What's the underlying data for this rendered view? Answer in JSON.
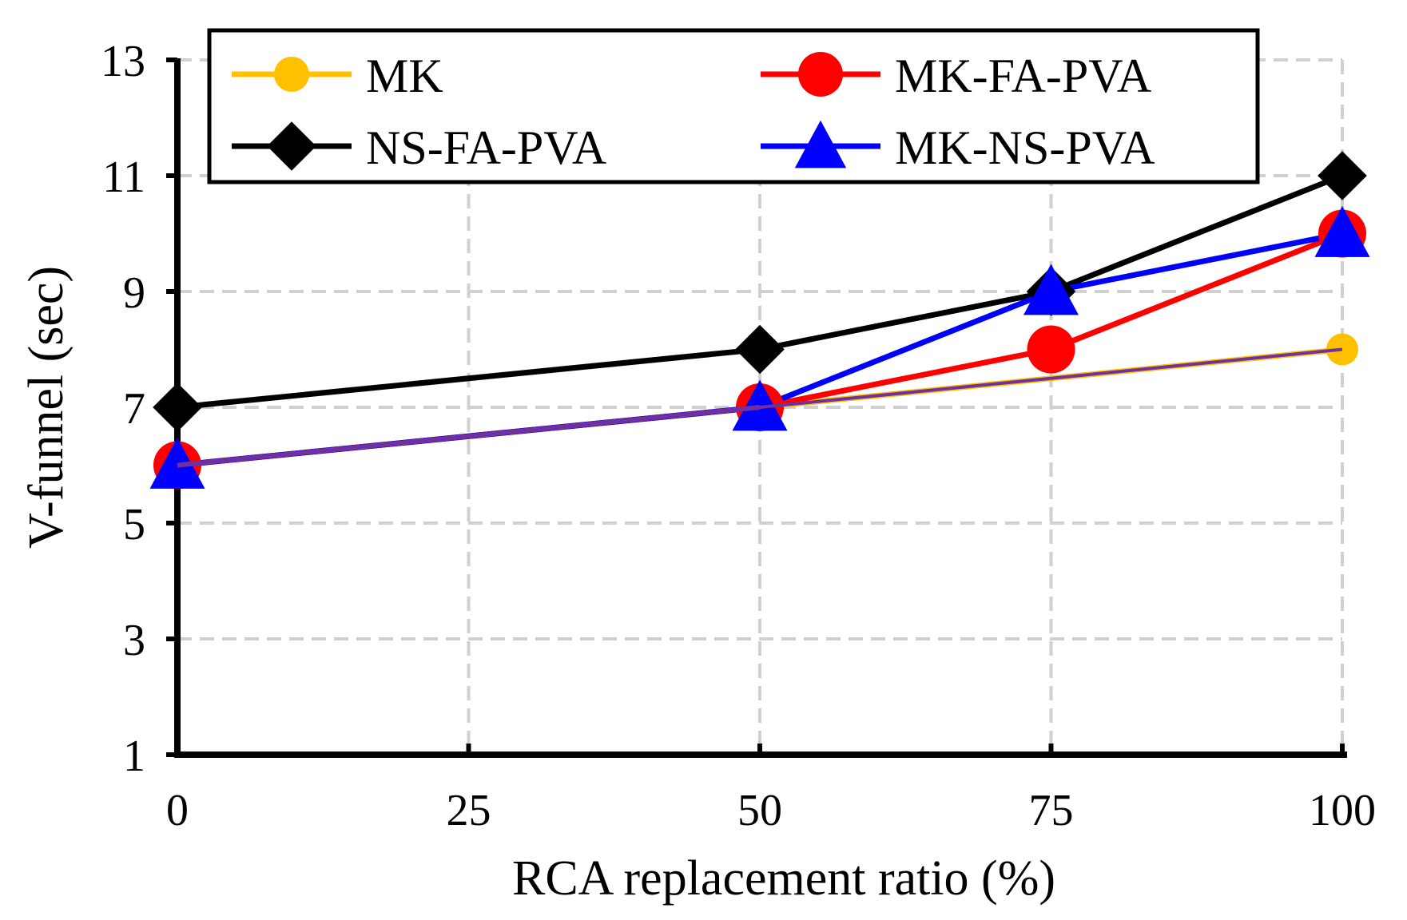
{
  "chart_data": {
    "type": "line",
    "title": "",
    "xlabel": "RCA replacement ratio (%)",
    "ylabel": "V-funnel (sec)",
    "x": [
      0,
      50,
      75,
      100
    ],
    "xticks": [
      0,
      25,
      50,
      75,
      100
    ],
    "yticks": [
      1,
      3,
      5,
      7,
      9,
      11,
      13
    ],
    "xlim": [
      0,
      100
    ],
    "ylim": [
      1,
      13
    ],
    "grid": true,
    "legend_position": "top",
    "series": [
      {
        "name": "MK",
        "values": [
          6,
          7,
          7.5,
          8
        ],
        "color": "#FFC000",
        "marker": "circle"
      },
      {
        "name": "MK-FA-PVA",
        "values": [
          6,
          7,
          8,
          10
        ],
        "color": "#FF0000",
        "marker": "circle"
      },
      {
        "name": "NS-FA-PVA",
        "values": [
          7,
          8,
          9,
          11
        ],
        "color": "#000000",
        "marker": "diamond"
      },
      {
        "name": "MK-NS-PVA",
        "values": [
          6,
          7,
          9,
          10
        ],
        "color": "#0000FF",
        "marker": "triangle"
      }
    ],
    "overlay_segment": {
      "description_color": "#7030A0",
      "x": [
        0,
        50
      ],
      "values": [
        6,
        7
      ]
    }
  }
}
